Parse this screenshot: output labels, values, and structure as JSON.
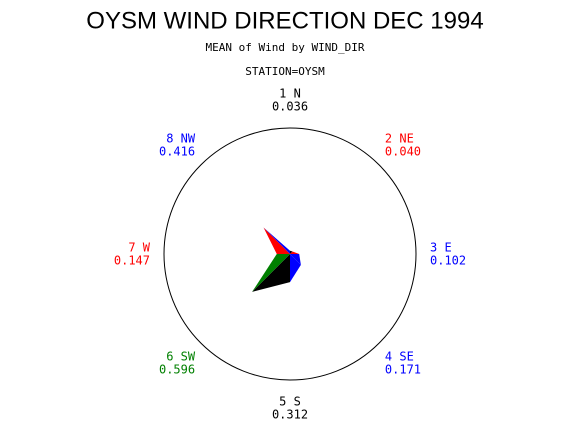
{
  "chart_data": {
    "type": "star",
    "title": "OYSM WIND DIRECTION DEC 1994",
    "subtitle": "MEAN of Wind by WIND_DIR",
    "station": "STATION=OYSM",
    "categories": [
      "1 N",
      "2 NE",
      "3 E",
      "4 SE",
      "5 S",
      "6 SW",
      "7 W",
      "8 NW"
    ],
    "values": [
      0.036,
      0.04,
      0.102,
      0.171,
      0.312,
      0.596,
      0.147,
      0.416
    ],
    "value_labels": [
      "0.036",
      "0.040",
      "0.102",
      "0.171",
      "0.312",
      "0.596",
      "0.147",
      "0.416"
    ],
    "colors": [
      "#000000",
      "#ff0000",
      "#0000ff",
      "#0000ff",
      "#000000",
      "#008000",
      "#ff0000",
      "#0000ff"
    ]
  }
}
